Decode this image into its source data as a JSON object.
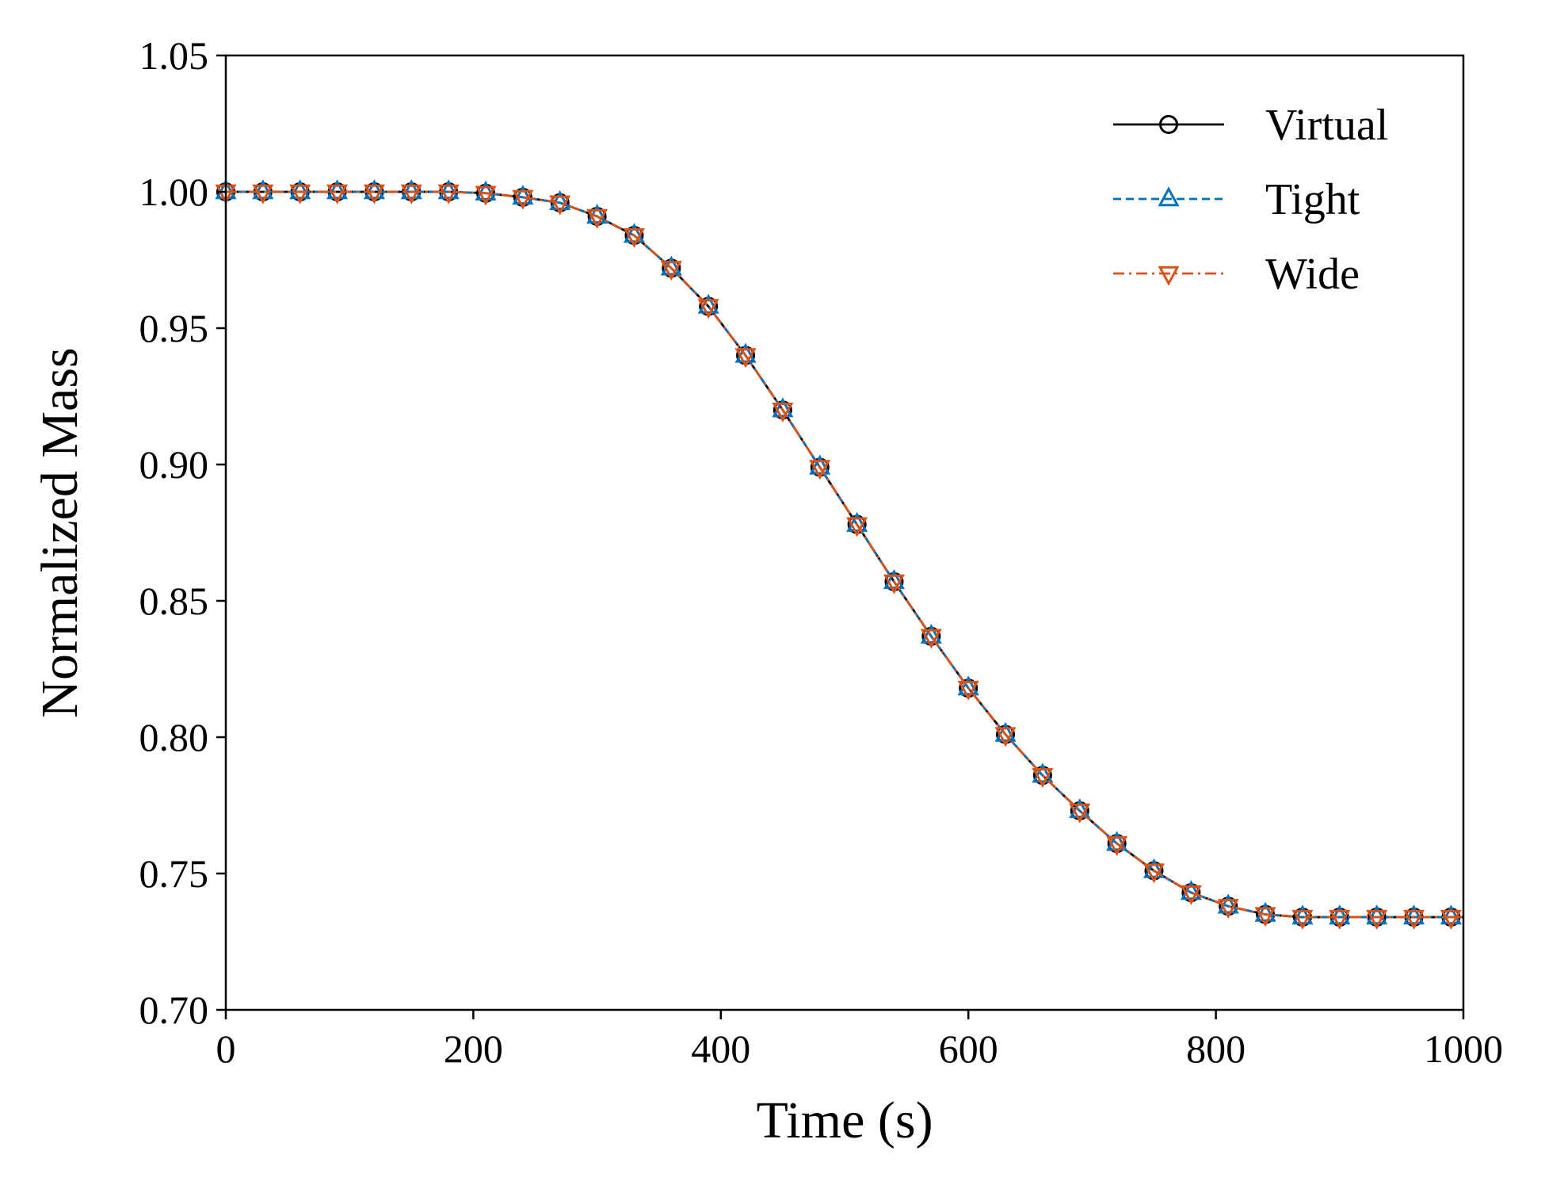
{
  "chart_data": {
    "type": "line",
    "title": "",
    "xlabel": "Time (s)",
    "ylabel": "Normalized Mass",
    "xlim": [
      0,
      1000
    ],
    "ylim": [
      0.7,
      1.05
    ],
    "xticks": [
      "0",
      "200",
      "400",
      "600",
      "800",
      "1000"
    ],
    "yticks": [
      "0.70",
      "0.75",
      "0.80",
      "0.85",
      "0.90",
      "0.95",
      "1.00",
      "1.05"
    ],
    "grid": false,
    "legend_position": "top-right",
    "x": [
      0,
      30,
      60,
      90,
      120,
      150,
      180,
      210,
      240,
      270,
      300,
      330,
      360,
      390,
      420,
      450,
      480,
      510,
      540,
      570,
      600,
      630,
      660,
      690,
      720,
      750,
      780,
      810,
      840,
      870,
      900,
      930,
      960,
      990
    ],
    "series": [
      {
        "name": "Virtual",
        "color": "#000000",
        "line_style": "solid",
        "marker": "circle",
        "values": [
          1.0,
          1.0,
          1.0,
          1.0,
          1.0,
          1.0,
          1.0,
          0.9995,
          0.998,
          0.996,
          0.991,
          0.984,
          0.972,
          0.958,
          0.94,
          0.92,
          0.899,
          0.878,
          0.857,
          0.837,
          0.818,
          0.801,
          0.786,
          0.773,
          0.761,
          0.751,
          0.743,
          0.738,
          0.735,
          0.734,
          0.734,
          0.734,
          0.734,
          0.734
        ]
      },
      {
        "name": "Tight",
        "color": "#0072BD",
        "line_style": "dashed",
        "marker": "triangle-up",
        "values": [
          1.0,
          1.0,
          1.0,
          1.0,
          1.0,
          1.0,
          1.0,
          0.9995,
          0.998,
          0.996,
          0.991,
          0.984,
          0.972,
          0.958,
          0.94,
          0.92,
          0.899,
          0.878,
          0.857,
          0.837,
          0.818,
          0.801,
          0.786,
          0.773,
          0.761,
          0.751,
          0.743,
          0.738,
          0.735,
          0.734,
          0.734,
          0.734,
          0.734,
          0.734
        ]
      },
      {
        "name": "Wide",
        "color": "#D95319",
        "line_style": "dashdot",
        "marker": "triangle-down",
        "values": [
          1.0,
          1.0,
          1.0,
          1.0,
          1.0,
          1.0,
          1.0,
          0.9995,
          0.998,
          0.996,
          0.991,
          0.984,
          0.972,
          0.958,
          0.94,
          0.92,
          0.899,
          0.878,
          0.857,
          0.837,
          0.818,
          0.801,
          0.786,
          0.773,
          0.761,
          0.751,
          0.743,
          0.738,
          0.735,
          0.734,
          0.734,
          0.734,
          0.734,
          0.734
        ]
      }
    ]
  }
}
